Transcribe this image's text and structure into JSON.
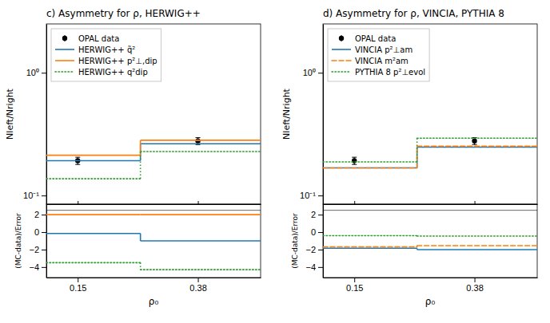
{
  "chart_data": [
    {
      "type": "step",
      "title": "c) Asymmetry for ρ, HERWIG++",
      "ylabel": "Nleft/Nright",
      "bins": [
        0.09,
        0.27,
        0.5
      ],
      "series": [
        {
          "name": "OPAL data",
          "type": "scatter",
          "marker": "circle",
          "color": "black",
          "x": [
            0.15,
            0.38
          ],
          "values": [
            0.192,
            0.278
          ],
          "errors": [
            0.013,
            0.018
          ]
        },
        {
          "name": "HERWIG++ q̃²",
          "values": [
            0.192,
            0.264
          ],
          "line_style": "solid"
        },
        {
          "name": "HERWIG++ p²⊥,dip",
          "values": [
            0.213,
            0.282
          ],
          "line_style": "solid"
        },
        {
          "name": "HERWIG++ q²dip",
          "values": [
            0.137,
            0.228
          ],
          "line_style": "dotted"
        }
      ],
      "xlim": [
        0.09,
        0.5
      ],
      "xticks": [
        0.15,
        0.38
      ],
      "ylim": [
        0.085,
        2.5
      ],
      "yticks": [
        {
          "value": 0.1,
          "label": "10⁻¹"
        },
        {
          "value": 1,
          "label": "10⁰"
        }
      ],
      "log": "y",
      "legend": "upper left",
      "tick_labels": "y"
    },
    {
      "type": "step",
      "xlabel": "ρ₀",
      "ylabel": "(MC-data)/Error",
      "bins": [
        0.09,
        0.27,
        0.5
      ],
      "series": [
        {
          "values": [
            -0.15,
            -1.0
          ],
          "line_style": "solid"
        },
        {
          "values": [
            2.0,
            2.0
          ],
          "line_style": "solid"
        },
        {
          "values": [
            -3.5,
            -4.3
          ],
          "line_style": "dotted"
        }
      ],
      "hline": 2.5,
      "xlim": [
        0.09,
        0.5
      ],
      "xticks": [
        0.15,
        0.38
      ],
      "ylim": [
        -5.2,
        3.2
      ],
      "yticks": [
        {
          "value": -4,
          "label": "−4"
        },
        {
          "value": -2,
          "label": "−2"
        },
        0,
        2
      ]
    },
    {
      "type": "step",
      "title": "d) Asymmetry for ρ, VINCIA, PYTHIA 8",
      "ylabel": "Nleft/Nright",
      "bins": [
        0.09,
        0.27,
        0.5
      ],
      "series": [
        {
          "name": "OPAL data",
          "type": "scatter",
          "marker": "circle",
          "color": "black",
          "x": [
            0.15,
            0.38
          ],
          "values": [
            0.192,
            0.278
          ],
          "errors": [
            0.013,
            0.018
          ]
        },
        {
          "name": "VINCIA p²⊥am",
          "values": [
            0.168,
            0.248
          ],
          "line_style": "solid"
        },
        {
          "name": "VINCIA m²am",
          "values": [
            0.168,
            0.252
          ],
          "line_style": "dashed"
        },
        {
          "name": "PYTHIA 8 p²⊥evol",
          "values": [
            0.188,
            0.293
          ],
          "line_style": "dotted"
        }
      ],
      "xlim": [
        0.09,
        0.5
      ],
      "xticks": [
        0.15,
        0.38
      ],
      "ylim": [
        0.085,
        2.5
      ],
      "yticks": [
        {
          "value": 0.1,
          "label": "10⁻¹"
        },
        {
          "value": 1,
          "label": "10⁰"
        }
      ],
      "log": "y",
      "legend": "upper left",
      "tick_labels": "y"
    },
    {
      "type": "step",
      "xlabel": "ρ₀",
      "ylabel": "(MC-data)/Error",
      "bins": [
        0.09,
        0.27,
        0.5
      ],
      "series": [
        {
          "values": [
            -1.85,
            -2.0
          ],
          "line_style": "solid"
        },
        {
          "values": [
            -1.7,
            -1.55
          ],
          "line_style": "dashed"
        },
        {
          "values": [
            -0.4,
            -0.45
          ],
          "line_style": "dotted"
        }
      ],
      "hline": 2.5,
      "xlim": [
        0.09,
        0.5
      ],
      "xticks": [
        0.15,
        0.38
      ],
      "ylim": [
        -5.2,
        3.2
      ],
      "yticks": [
        {
          "value": -4,
          "label": "−4"
        },
        {
          "value": -2,
          "label": "−2"
        },
        0,
        2
      ]
    }
  ]
}
